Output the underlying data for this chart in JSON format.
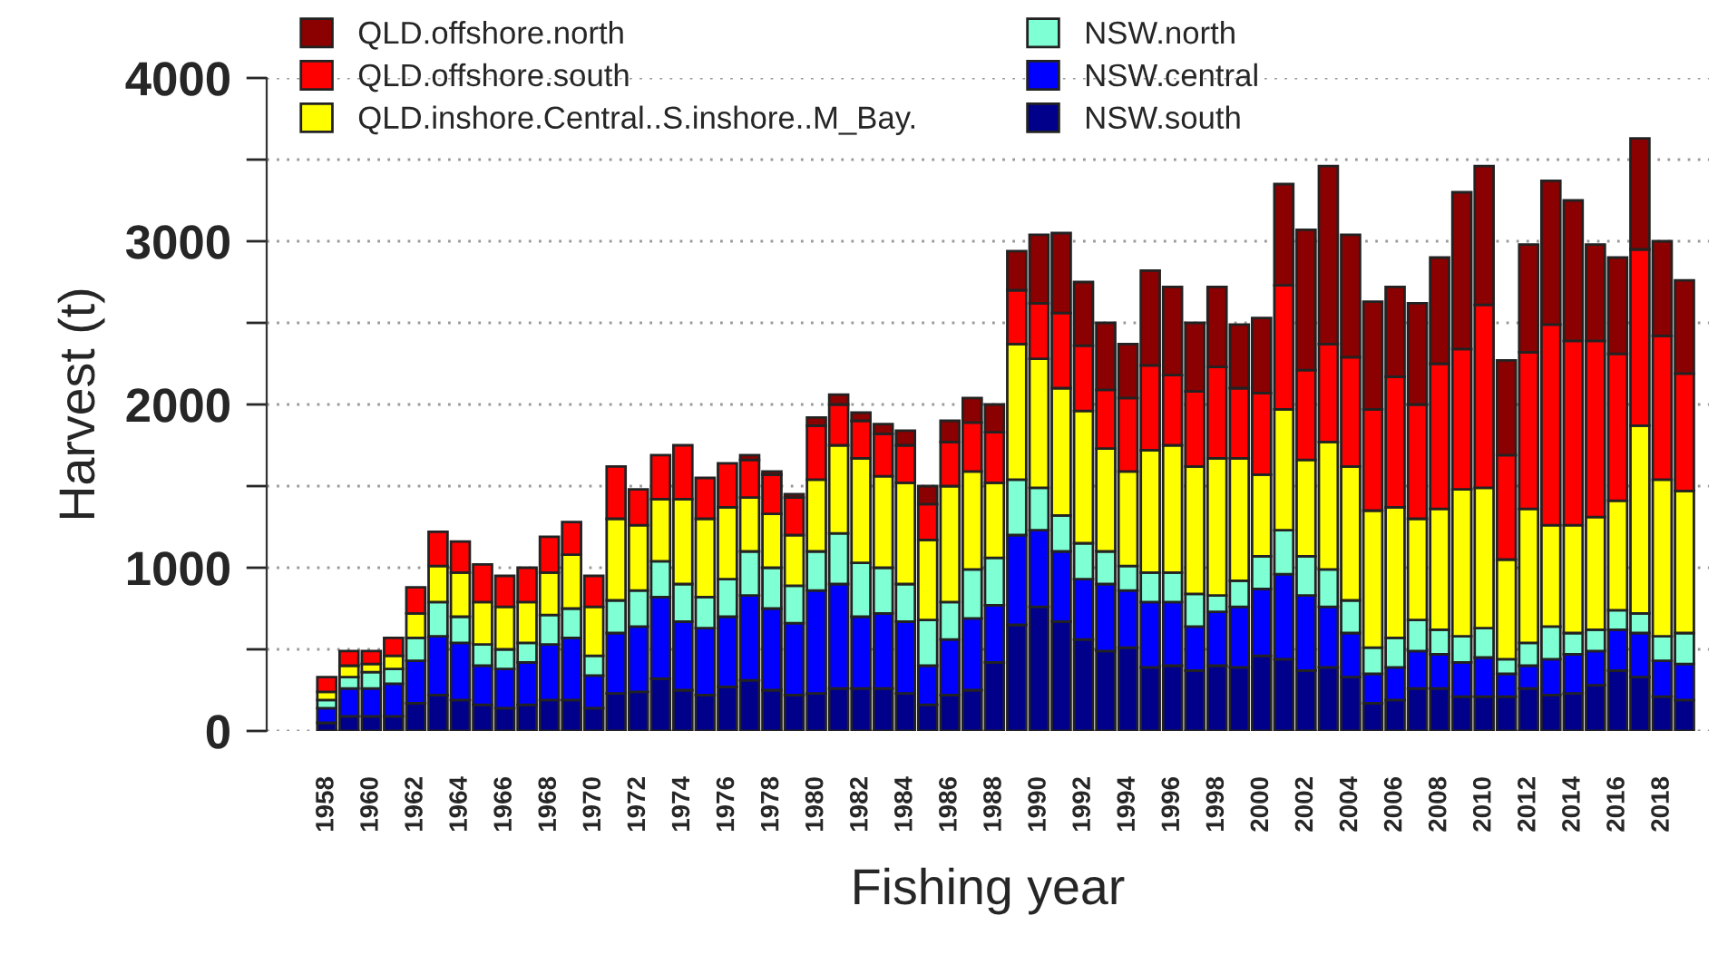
{
  "chart_data": {
    "type": "bar",
    "stacked": true,
    "xlabel": "Fishing year",
    "ylabel": "Harvest (t)",
    "categories": [
      "1958",
      null,
      "1960",
      null,
      "1962",
      null,
      "1964",
      null,
      "1966",
      null,
      "1968",
      null,
      "1970",
      null,
      "1972",
      null,
      "1974",
      null,
      "1976",
      null,
      "1978",
      null,
      "1980",
      null,
      "1982",
      null,
      "1984",
      null,
      "1986",
      null,
      "1988",
      null,
      "1990",
      null,
      "1992",
      null,
      "1994",
      null,
      "1996",
      null,
      "1998",
      null,
      "2000",
      null,
      "2002",
      null,
      "2004",
      null,
      "2006",
      null,
      "2008",
      null,
      "2010",
      null,
      "2012",
      null,
      "2014",
      null,
      "2016",
      null,
      "2018",
      null
    ],
    "series": [
      {
        "name": "NSW.south",
        "color": "#00008b",
        "values": [
          50,
          90,
          90,
          90,
          170,
          220,
          190,
          160,
          140,
          160,
          190,
          190,
          140,
          230,
          240,
          320,
          250,
          220,
          270,
          310,
          250,
          220,
          230,
          260,
          260,
          260,
          230,
          160,
          220,
          250,
          420,
          650,
          760,
          670,
          560,
          490,
          510,
          390,
          400,
          370,
          400,
          390,
          460,
          440,
          370,
          390,
          330,
          170,
          190,
          260,
          260,
          210,
          210,
          210,
          260,
          220,
          230,
          280,
          370,
          330,
          210,
          190
        ]
      },
      {
        "name": "NSW.central",
        "color": "#0000ff",
        "values": [
          90,
          170,
          170,
          200,
          260,
          360,
          350,
          240,
          240,
          260,
          340,
          380,
          200,
          370,
          400,
          500,
          420,
          410,
          430,
          520,
          500,
          440,
          630,
          640,
          440,
          460,
          440,
          240,
          340,
          440,
          350,
          550,
          470,
          430,
          370,
          410,
          350,
          400,
          390,
          270,
          330,
          370,
          410,
          520,
          460,
          370,
          270,
          180,
          200,
          230,
          210,
          210,
          240,
          140,
          140,
          220,
          240,
          210,
          250,
          270,
          220,
          220
        ]
      },
      {
        "name": "NSW.north",
        "color": "#7fffd4",
        "values": [
          50,
          70,
          100,
          90,
          140,
          210,
          160,
          130,
          120,
          120,
          180,
          180,
          120,
          200,
          220,
          220,
          230,
          190,
          230,
          270,
          250,
          230,
          240,
          310,
          330,
          280,
          230,
          280,
          230,
          300,
          290,
          340,
          260,
          220,
          220,
          200,
          150,
          180,
          180,
          200,
          100,
          160,
          200,
          270,
          240,
          230,
          200,
          160,
          180,
          190,
          150,
          160,
          180,
          90,
          140,
          200,
          130,
          130,
          120,
          120,
          150,
          190
        ]
      },
      {
        "name": "QLD.inshore.Central..S.inshore..M_Bay.",
        "color": "#ffff00",
        "values": [
          50,
          70,
          50,
          80,
          150,
          220,
          270,
          260,
          260,
          250,
          260,
          330,
          300,
          500,
          400,
          380,
          520,
          480,
          440,
          330,
          330,
          310,
          440,
          540,
          640,
          560,
          620,
          490,
          710,
          600,
          460,
          830,
          790,
          780,
          810,
          630,
          580,
          750,
          780,
          780,
          840,
          750,
          500,
          740,
          590,
          780,
          820,
          840,
          800,
          620,
          740,
          900,
          860,
          610,
          820,
          620,
          660,
          690,
          670,
          1150,
          960,
          870
        ]
      },
      {
        "name": "QLD.offshore.south",
        "color": "#ff0000",
        "values": [
          90,
          90,
          80,
          110,
          160,
          210,
          190,
          230,
          190,
          210,
          220,
          200,
          190,
          320,
          220,
          270,
          330,
          250,
          270,
          230,
          240,
          230,
          330,
          250,
          230,
          260,
          230,
          220,
          270,
          300,
          310,
          330,
          340,
          460,
          400,
          360,
          450,
          520,
          430,
          460,
          560,
          430,
          500,
          760,
          550,
          600,
          670,
          620,
          800,
          700,
          890,
          860,
          1120,
          640,
          960,
          1230,
          1130,
          1080,
          900,
          1080,
          880,
          720
        ]
      },
      {
        "name": "QLD.offshore.north",
        "color": "#8b0000",
        "values": [
          null,
          null,
          null,
          null,
          null,
          null,
          null,
          null,
          null,
          null,
          null,
          null,
          null,
          null,
          null,
          null,
          null,
          null,
          null,
          30,
          20,
          20,
          50,
          60,
          50,
          60,
          90,
          110,
          130,
          150,
          170,
          240,
          420,
          490,
          390,
          410,
          330,
          580,
          540,
          420,
          490,
          390,
          460,
          620,
          860,
          1090,
          750,
          660,
          550,
          620,
          650,
          960,
          850,
          580,
          660,
          880,
          860,
          590,
          590,
          680,
          580,
          570
        ]
      }
    ],
    "ylim": [
      0,
      4000
    ],
    "yticks": [
      0,
      {
        "value": 500,
        "label": null
      },
      1000,
      {
        "value": 1500,
        "label": null
      },
      2000,
      {
        "value": 2500,
        "label": null
      },
      3000,
      {
        "value": 3500,
        "label": null
      },
      4000
    ],
    "grid": "y",
    "legend": "top left"
  }
}
